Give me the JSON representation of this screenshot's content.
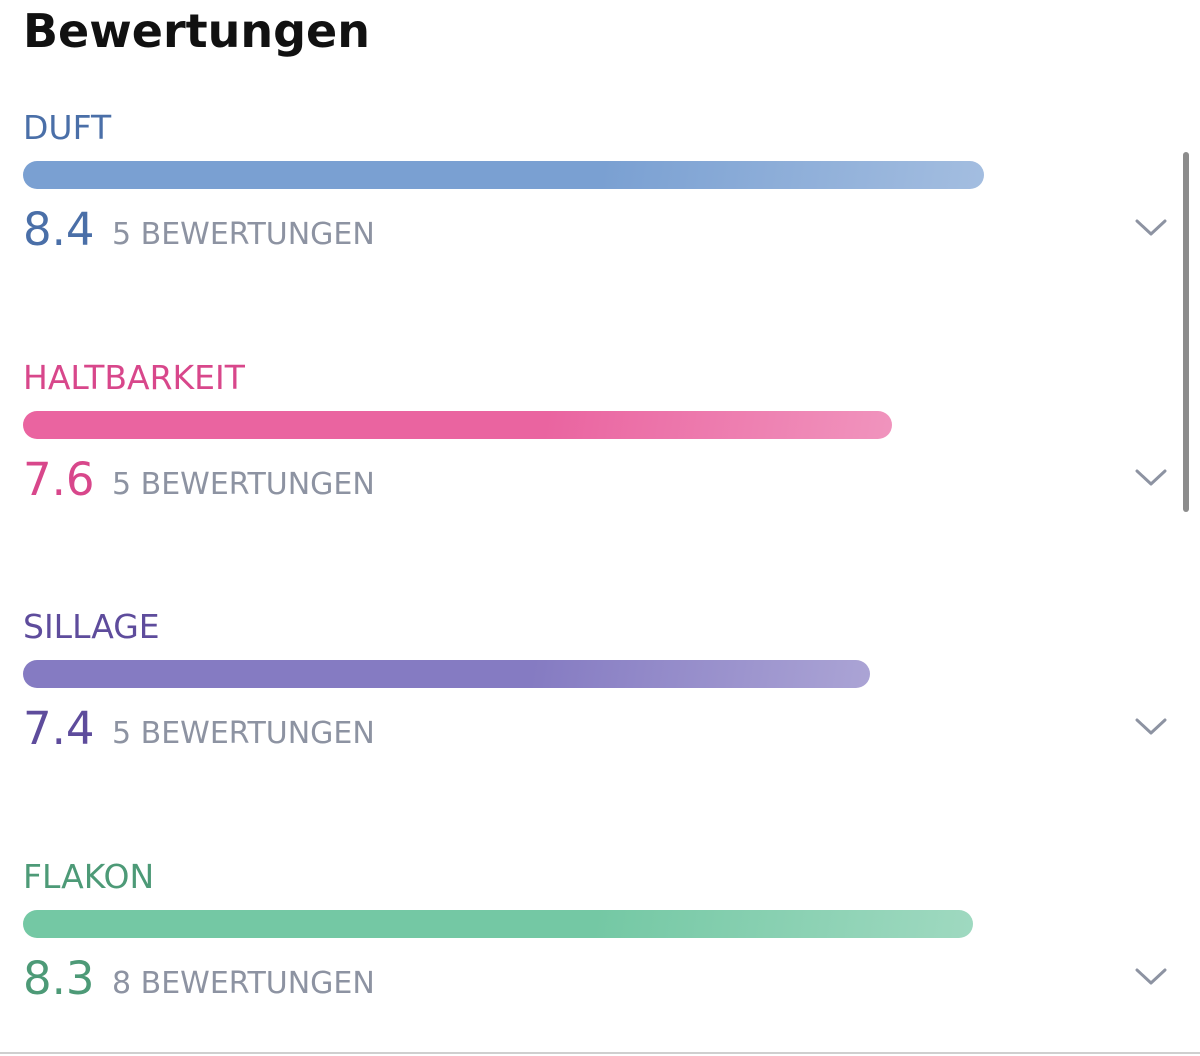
{
  "title": "Bewertungen",
  "scale": [
    0,
    10
  ],
  "ratings": [
    {
      "label": "DUFT",
      "score": 8.4,
      "count": "5 BEWERTUNGEN",
      "color": "#4a6fa8",
      "bar_color": "#7aa0d2"
    },
    {
      "label": "HALTBARKEIT",
      "score": 7.6,
      "count": "5 BEWERTUNGEN",
      "color": "#d8478b",
      "bar_color": "#ea64a0"
    },
    {
      "label": "SILLAGE",
      "score": 7.4,
      "count": "5 BEWERTUNGEN",
      "color": "#5e4c9c",
      "bar_color": "#857bc2"
    },
    {
      "label": "FLAKON",
      "score": 8.3,
      "count": "8 BEWERTUNGEN",
      "color": "#4d9a77",
      "bar_color": "#74c8a4"
    }
  ]
}
